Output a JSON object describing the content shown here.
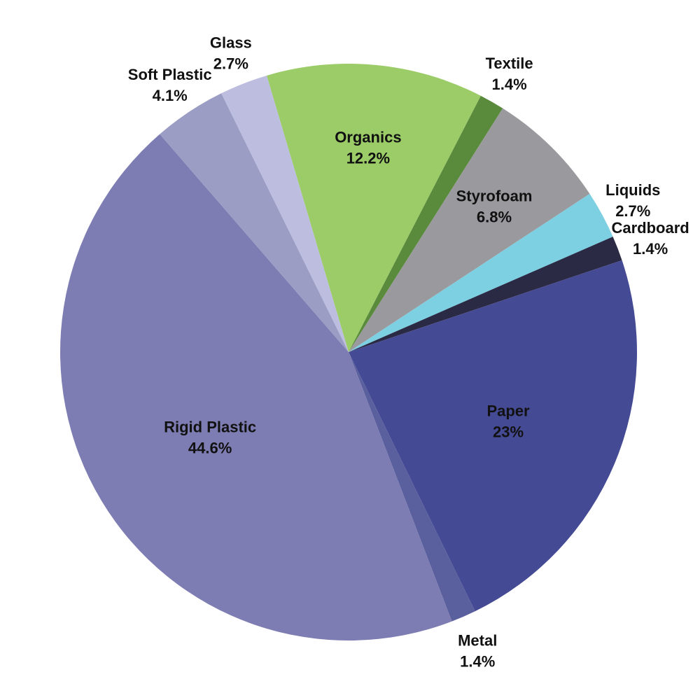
{
  "chart_data": {
    "type": "pie",
    "title": "",
    "legend": "none",
    "slices": [
      {
        "label": "Organics",
        "value": 12.2,
        "value_label": "12.2%",
        "color": "#9ccc68",
        "label_pos": "inside"
      },
      {
        "label": "Textile",
        "value": 1.4,
        "value_label": "1.4%",
        "color": "#5a8a3c",
        "label_pos": "outside"
      },
      {
        "label": "Styrofoam",
        "value": 6.8,
        "value_label": "6.8%",
        "color": "#9a9a9e",
        "label_pos": "inside"
      },
      {
        "label": "Liquids",
        "value": 2.7,
        "value_label": "2.7%",
        "color": "#7dcfe2",
        "label_pos": "outside"
      },
      {
        "label": "Cardboard",
        "value": 1.4,
        "value_label": "1.4%",
        "color": "#2a2a45",
        "label_pos": "outside"
      },
      {
        "label": "Paper",
        "value": 23,
        "value_label": "23%",
        "color": "#454a94",
        "label_pos": "inside"
      },
      {
        "label": "Metal",
        "value": 1.4,
        "value_label": "1.4%",
        "color": "#5a5f9e",
        "label_pos": "outside"
      },
      {
        "label": "Rigid Plastic",
        "value": 44.6,
        "value_label": "44.6%",
        "color": "#7d7db3",
        "label_pos": "inside"
      },
      {
        "label": "Soft Plastic",
        "value": 4.1,
        "value_label": "4.1%",
        "color": "#9c9dc4",
        "label_pos": "outside"
      },
      {
        "label": "Glass",
        "value": 2.7,
        "value_label": "2.7%",
        "color": "#bdbde0",
        "label_pos": "outside"
      }
    ]
  }
}
